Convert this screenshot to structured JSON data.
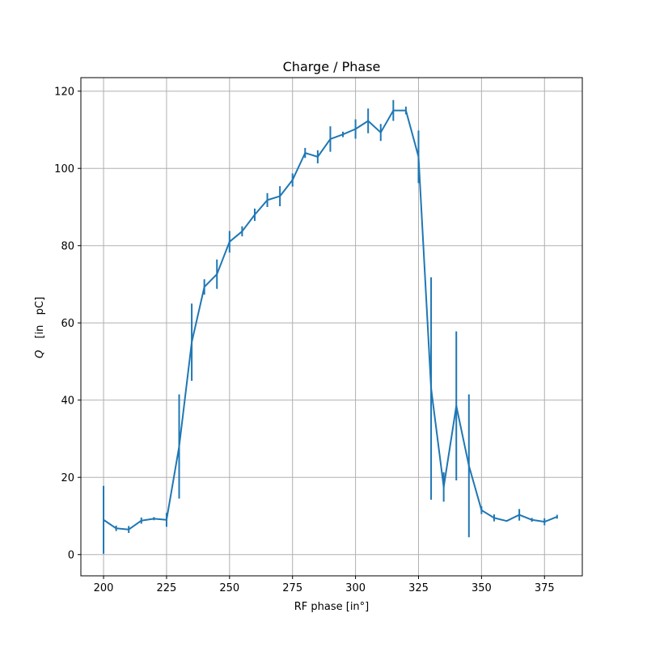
{
  "chart_data": {
    "type": "line",
    "title": "Charge / Phase",
    "xlabel": "RF phase [in°]",
    "ylabel_italic": "Q",
    "ylabel_rest": "[in   pC]",
    "xlim": [
      191,
      390
    ],
    "ylim": [
      -5.5,
      123.5
    ],
    "xticks": [
      200,
      225,
      250,
      275,
      300,
      325,
      350,
      375
    ],
    "yticks": [
      0,
      20,
      40,
      60,
      80,
      100,
      120
    ],
    "grid": true,
    "color": "#1f77b4",
    "series": [
      {
        "x": [
          200,
          205,
          210,
          215,
          220,
          225,
          230,
          235,
          240,
          245,
          250,
          255,
          260,
          265,
          270,
          275,
          280,
          285,
          290,
          295,
          300,
          305,
          310,
          315,
          320,
          325,
          330,
          335,
          340,
          345,
          350,
          355,
          360,
          365,
          370,
          375,
          380
        ],
        "y": [
          9.0,
          6.8,
          6.5,
          8.8,
          9.3,
          9.0,
          28.0,
          55.0,
          69.3,
          72.6,
          81.0,
          83.7,
          88.0,
          91.8,
          92.8,
          97.0,
          104.0,
          103.0,
          107.6,
          108.8,
          110.2,
          112.3,
          109.3,
          115.0,
          115.0,
          103.0,
          43.0,
          17.5,
          38.5,
          23.0,
          11.5,
          9.5,
          8.7,
          10.3,
          9.0,
          8.5,
          9.8
        ],
        "err": [
          8.8,
          0.7,
          0.9,
          0.8,
          0.4,
          1.8,
          13.5,
          10.0,
          2.0,
          3.8,
          2.8,
          1.3,
          1.6,
          1.8,
          2.6,
          1.7,
          1.3,
          1.7,
          3.3,
          0.7,
          2.5,
          3.2,
          2.2,
          2.7,
          1.0,
          6.8,
          28.8,
          3.8,
          19.3,
          18.5,
          1.0,
          0.9,
          0.0,
          1.5,
          0.5,
          0.9,
          0.5
        ]
      }
    ]
  }
}
